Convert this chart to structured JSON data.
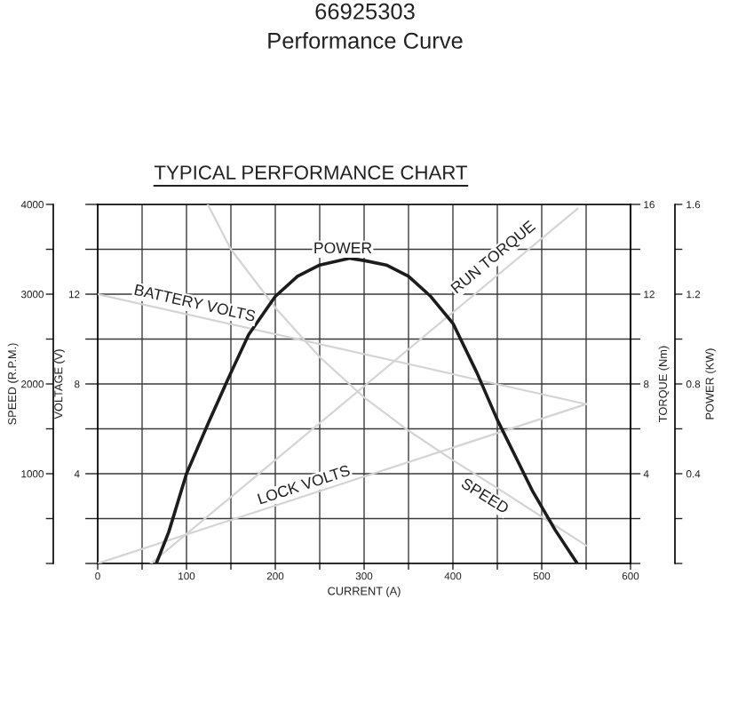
{
  "chart_data": [
    {
      "type": "line",
      "title": "66925303",
      "subtitle": "Performance Curve",
      "annotations": [
        "TYPICAL PERFORMANCE CHART"
      ],
      "xlabel": "CURRENT (A)",
      "ylabel": "VOLTAGE (V)",
      "y2label": "TORQUE (Nm)",
      "y3label": "SPEED (R.P.M.)",
      "xlim": [
        0,
        600
      ],
      "xticks": [
        0,
        {
          "value": 50,
          "label": null
        },
        100,
        {
          "value": 150,
          "label": null
        },
        200,
        {
          "value": 250,
          "label": null
        },
        300,
        {
          "value": 350,
          "label": null
        },
        400,
        {
          "value": 450,
          "label": null
        },
        500,
        {
          "value": 550,
          "label": null
        },
        600
      ],
      "ylim": [
        0,
        16
      ],
      "yticks": [
        {
          "value": 0,
          "label": null
        },
        {
          "value": 2,
          "label": null
        },
        4,
        {
          "value": 6,
          "label": null
        },
        8,
        {
          "value": 10,
          "label": null
        },
        12,
        {
          "value": 14,
          "label": null
        },
        {
          "value": 16,
          "label": null
        }
      ],
      "y2lim": [
        0,
        16
      ],
      "y2ticks": [
        {
          "value": 0,
          "label": null
        },
        {
          "value": 2,
          "label": null
        },
        4,
        {
          "value": 6,
          "label": null
        },
        8,
        {
          "value": 10,
          "label": null
        },
        12,
        {
          "value": 14,
          "label": null
        },
        16
      ],
      "y3lim": [
        0,
        4000
      ],
      "y3ticks": [
        {
          "value": 0,
          "label": null
        },
        {
          "value": 500,
          "label": null
        },
        1000,
        {
          "value": 1500,
          "label": null
        },
        2000,
        {
          "value": 2500,
          "label": null
        },
        3000,
        {
          "value": 3500,
          "label": null
        },
        4000
      ],
      "grid": true,
      "series": [
        {
          "name": "BATTERY VOLTS",
          "color": "#d4d4d4",
          "x": [
            0,
            550
          ],
          "values": [
            12,
            7.1
          ]
        },
        {
          "name": "LOCK VOLTS",
          "color": "#d4d4d4",
          "x": [
            0,
            550
          ],
          "values": [
            0,
            7.1
          ]
        },
        {
          "name": "RUN TORQUE",
          "color": "#d4d4d4",
          "axis": "y2",
          "x": [
            60,
            540
          ],
          "values": [
            0,
            15.8
          ]
        },
        {
          "name": "SPEED",
          "color": "#d4d4d4",
          "axis": "y3",
          "x": [
            124,
            150,
            200,
            250,
            300,
            350,
            400,
            450,
            500,
            550
          ],
          "values": [
            4000,
            3500,
            2850,
            2300,
            1850,
            1480,
            1150,
            840,
            520,
            200
          ]
        }
      ]
    },
    {
      "type": "line",
      "ylabel": "POWER (KW)",
      "xlim": [
        0,
        600
      ],
      "ylim": [
        0,
        1.6
      ],
      "yticks": [
        {
          "value": 0,
          "label": null
        },
        {
          "value": 0.2,
          "label": null
        },
        0.4,
        {
          "value": 0.6,
          "label": null
        },
        0.8,
        {
          "value": 1.0,
          "label": null
        },
        1.2,
        {
          "value": 1.4,
          "label": null
        },
        1.6
      ],
      "tick_labels": "y",
      "series": [
        {
          "name": "POWER",
          "color": "#1c1c1c",
          "x": [
            66,
            80,
            100,
            125,
            150,
            170,
            200,
            225,
            250,
            284,
            300,
            325,
            350,
            375,
            400,
            427,
            450,
            470,
            490,
            515,
            540
          ],
          "values": [
            0,
            0.14,
            0.4,
            0.63,
            0.85,
            1.02,
            1.19,
            1.28,
            1.33,
            1.36,
            1.35,
            1.33,
            1.28,
            1.19,
            1.07,
            0.85,
            0.64,
            0.48,
            0.32,
            0.15,
            0
          ]
        }
      ]
    }
  ]
}
